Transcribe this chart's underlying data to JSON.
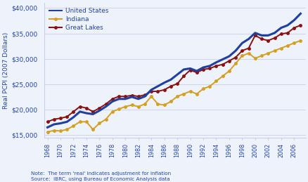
{
  "years": [
    1968,
    1969,
    1970,
    1971,
    1972,
    1973,
    1974,
    1975,
    1976,
    1977,
    1978,
    1979,
    1980,
    1981,
    1982,
    1983,
    1984,
    1985,
    1986,
    1987,
    1988,
    1989,
    1990,
    1991,
    1992,
    1993,
    1994,
    1995,
    1996,
    1997,
    1998,
    1999,
    2000,
    2001,
    2002,
    2003,
    2004,
    2005,
    2006,
    2007
  ],
  "us": [
    16500,
    17100,
    17300,
    17600,
    18500,
    19600,
    19300,
    19100,
    19800,
    20600,
    21600,
    22100,
    22100,
    22500,
    22100,
    22600,
    23900,
    24600,
    25300,
    25900,
    26900,
    27900,
    28100,
    27600,
    28300,
    28600,
    29300,
    29900,
    30500,
    31600,
    33100,
    33900,
    35100,
    34600,
    34600,
    35100,
    36100,
    36600,
    37600,
    38900
  ],
  "indiana": [
    15600,
    15900,
    15800,
    16100,
    16800,
    17600,
    17600,
    16100,
    17300,
    18100,
    19600,
    20100,
    20600,
    20900,
    20600,
    21100,
    22600,
    21100,
    20900,
    21600,
    22600,
    23100,
    23600,
    23100,
    24100,
    24600,
    25600,
    26600,
    27600,
    29100,
    30600,
    31100,
    30100,
    30600,
    31100,
    31600,
    32100,
    32600,
    33100,
    33600
  ],
  "great_lakes": [
    17600,
    18100,
    18300,
    18600,
    19600,
    20600,
    20300,
    19600,
    20300,
    21100,
    22100,
    22600,
    22600,
    22800,
    22600,
    22900,
    23600,
    23600,
    23900,
    24600,
    25100,
    26600,
    27800,
    27300,
    27900,
    28100,
    28600,
    28900,
    29600,
    30300,
    31600,
    32100,
    34600,
    33900,
    33600,
    34100,
    34900,
    35100,
    36100,
    36600
  ],
  "us_color": "#2040a0",
  "indiana_color": "#d4a020",
  "great_lakes_color": "#8b1010",
  "ylabel": "Real PCPI (2007 Dollars)",
  "ylim": [
    14500,
    41000
  ],
  "yticks": [
    15000,
    20000,
    25000,
    30000,
    35000,
    40000
  ],
  "ytick_labels": [
    "$15,000",
    "$20,000",
    "$25,000",
    "$30,000",
    "$35,000",
    "$40,000"
  ],
  "note_line1": "Note:  The term 'real' indicates adjustment for inflation",
  "note_line2": "Source:  IBRC, using Bureau of Economic Analysis data",
  "legend_labels": [
    "United States",
    "Indiana",
    "Great Lakes"
  ],
  "bg_color": "#eef2fb",
  "grid_color": "#c8d0e8",
  "text_color": "#2244aa",
  "marker_size": 2.5,
  "us_lw": 2.2,
  "other_lw": 1.4
}
